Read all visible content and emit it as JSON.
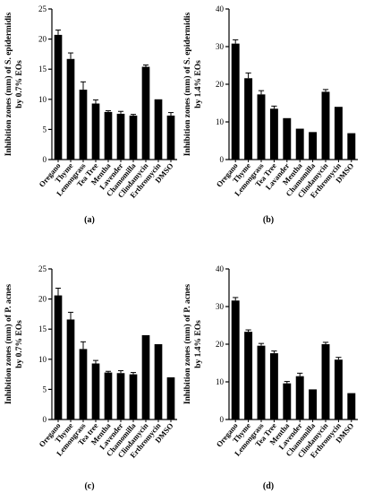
{
  "chart_data": [
    {
      "type": "bar",
      "panel_label": "(a)",
      "ylabel_line1": "Inhibition zones (mm) of S. epidermidis",
      "ylabel_line2": "by 0.7% EOs",
      "categories": [
        "Oregano",
        "Thyme",
        "Lemongrass",
        "Tea Tree",
        "Mentha",
        "Lavender",
        "Chamomilla",
        "Clindamycin",
        "Erthromycin",
        "DMSO"
      ],
      "values": [
        20.7,
        16.7,
        11.6,
        9.3,
        7.9,
        7.6,
        7.3,
        15.4,
        10.0,
        7.3
      ],
      "errors": [
        0.8,
        1.0,
        1.3,
        0.6,
        0.2,
        0.4,
        0.2,
        0.3,
        0.0,
        0.5
      ],
      "yticks": [
        0,
        5,
        10,
        15,
        20,
        25
      ],
      "ylim": [
        0,
        25
      ]
    },
    {
      "type": "bar",
      "panel_label": "(b)",
      "ylabel_line1": "Inhibition zones (mm) of S. epidermidis",
      "ylabel_line2": "by 1.4% EOs",
      "categories": [
        "Oregano",
        "Thyme",
        "Lemongrass",
        "Tea Tree",
        "Lavander",
        "Mentha",
        "Chamomilla",
        "Clindamycin",
        "Erthromycin",
        "DMSO"
      ],
      "values": [
        30.8,
        21.6,
        17.3,
        13.5,
        11.0,
        8.2,
        7.3,
        18.0,
        14.0,
        7.0
      ],
      "errors": [
        1.0,
        1.4,
        1.0,
        0.7,
        0.0,
        0.0,
        0.0,
        0.6,
        0.0,
        0.0
      ],
      "yticks": [
        0,
        10,
        20,
        30,
        40
      ],
      "ylim": [
        0,
        40
      ]
    },
    {
      "type": "bar",
      "panel_label": "(c)",
      "ylabel_line1": "Inhibition zones (mm) of P. acnes",
      "ylabel_line2": "by 0.7% EOs",
      "categories": [
        "Oregano",
        "Thyme",
        "Lemongrass",
        "Tea tree",
        "Mentha",
        "Lavender",
        "Chamomilla",
        "Clindamycin",
        "Erthromycin",
        "DMSO"
      ],
      "values": [
        20.6,
        16.6,
        11.7,
        9.3,
        7.8,
        7.7,
        7.5,
        14.0,
        12.5,
        7.0
      ],
      "errors": [
        1.2,
        1.2,
        1.2,
        0.5,
        0.2,
        0.4,
        0.3,
        0.0,
        0.0,
        0.0
      ],
      "yticks": [
        0,
        5,
        10,
        15,
        20,
        25
      ],
      "ylim": [
        0,
        25
      ]
    },
    {
      "type": "bar",
      "panel_label": "(d)",
      "ylabel_line1": "Inhibition zones (mm) of P. acnes",
      "ylabel_line2": "by 1.4% EOs",
      "categories": [
        "Oregano",
        "Thyme",
        "Lemongrass",
        "Tea Tree",
        "Mentha",
        "Lavender",
        "Chamomilla",
        "Clindamycin",
        "Erthromycin",
        "DMSO"
      ],
      "values": [
        31.6,
        23.3,
        19.6,
        17.6,
        9.6,
        11.5,
        8.0,
        20.0,
        15.9,
        7.0
      ],
      "errors": [
        0.8,
        0.5,
        0.6,
        0.6,
        0.5,
        0.8,
        0.0,
        0.5,
        0.6,
        0.0
      ],
      "yticks": [
        0,
        10,
        20,
        30,
        40
      ],
      "ylim": [
        0,
        40
      ]
    }
  ]
}
